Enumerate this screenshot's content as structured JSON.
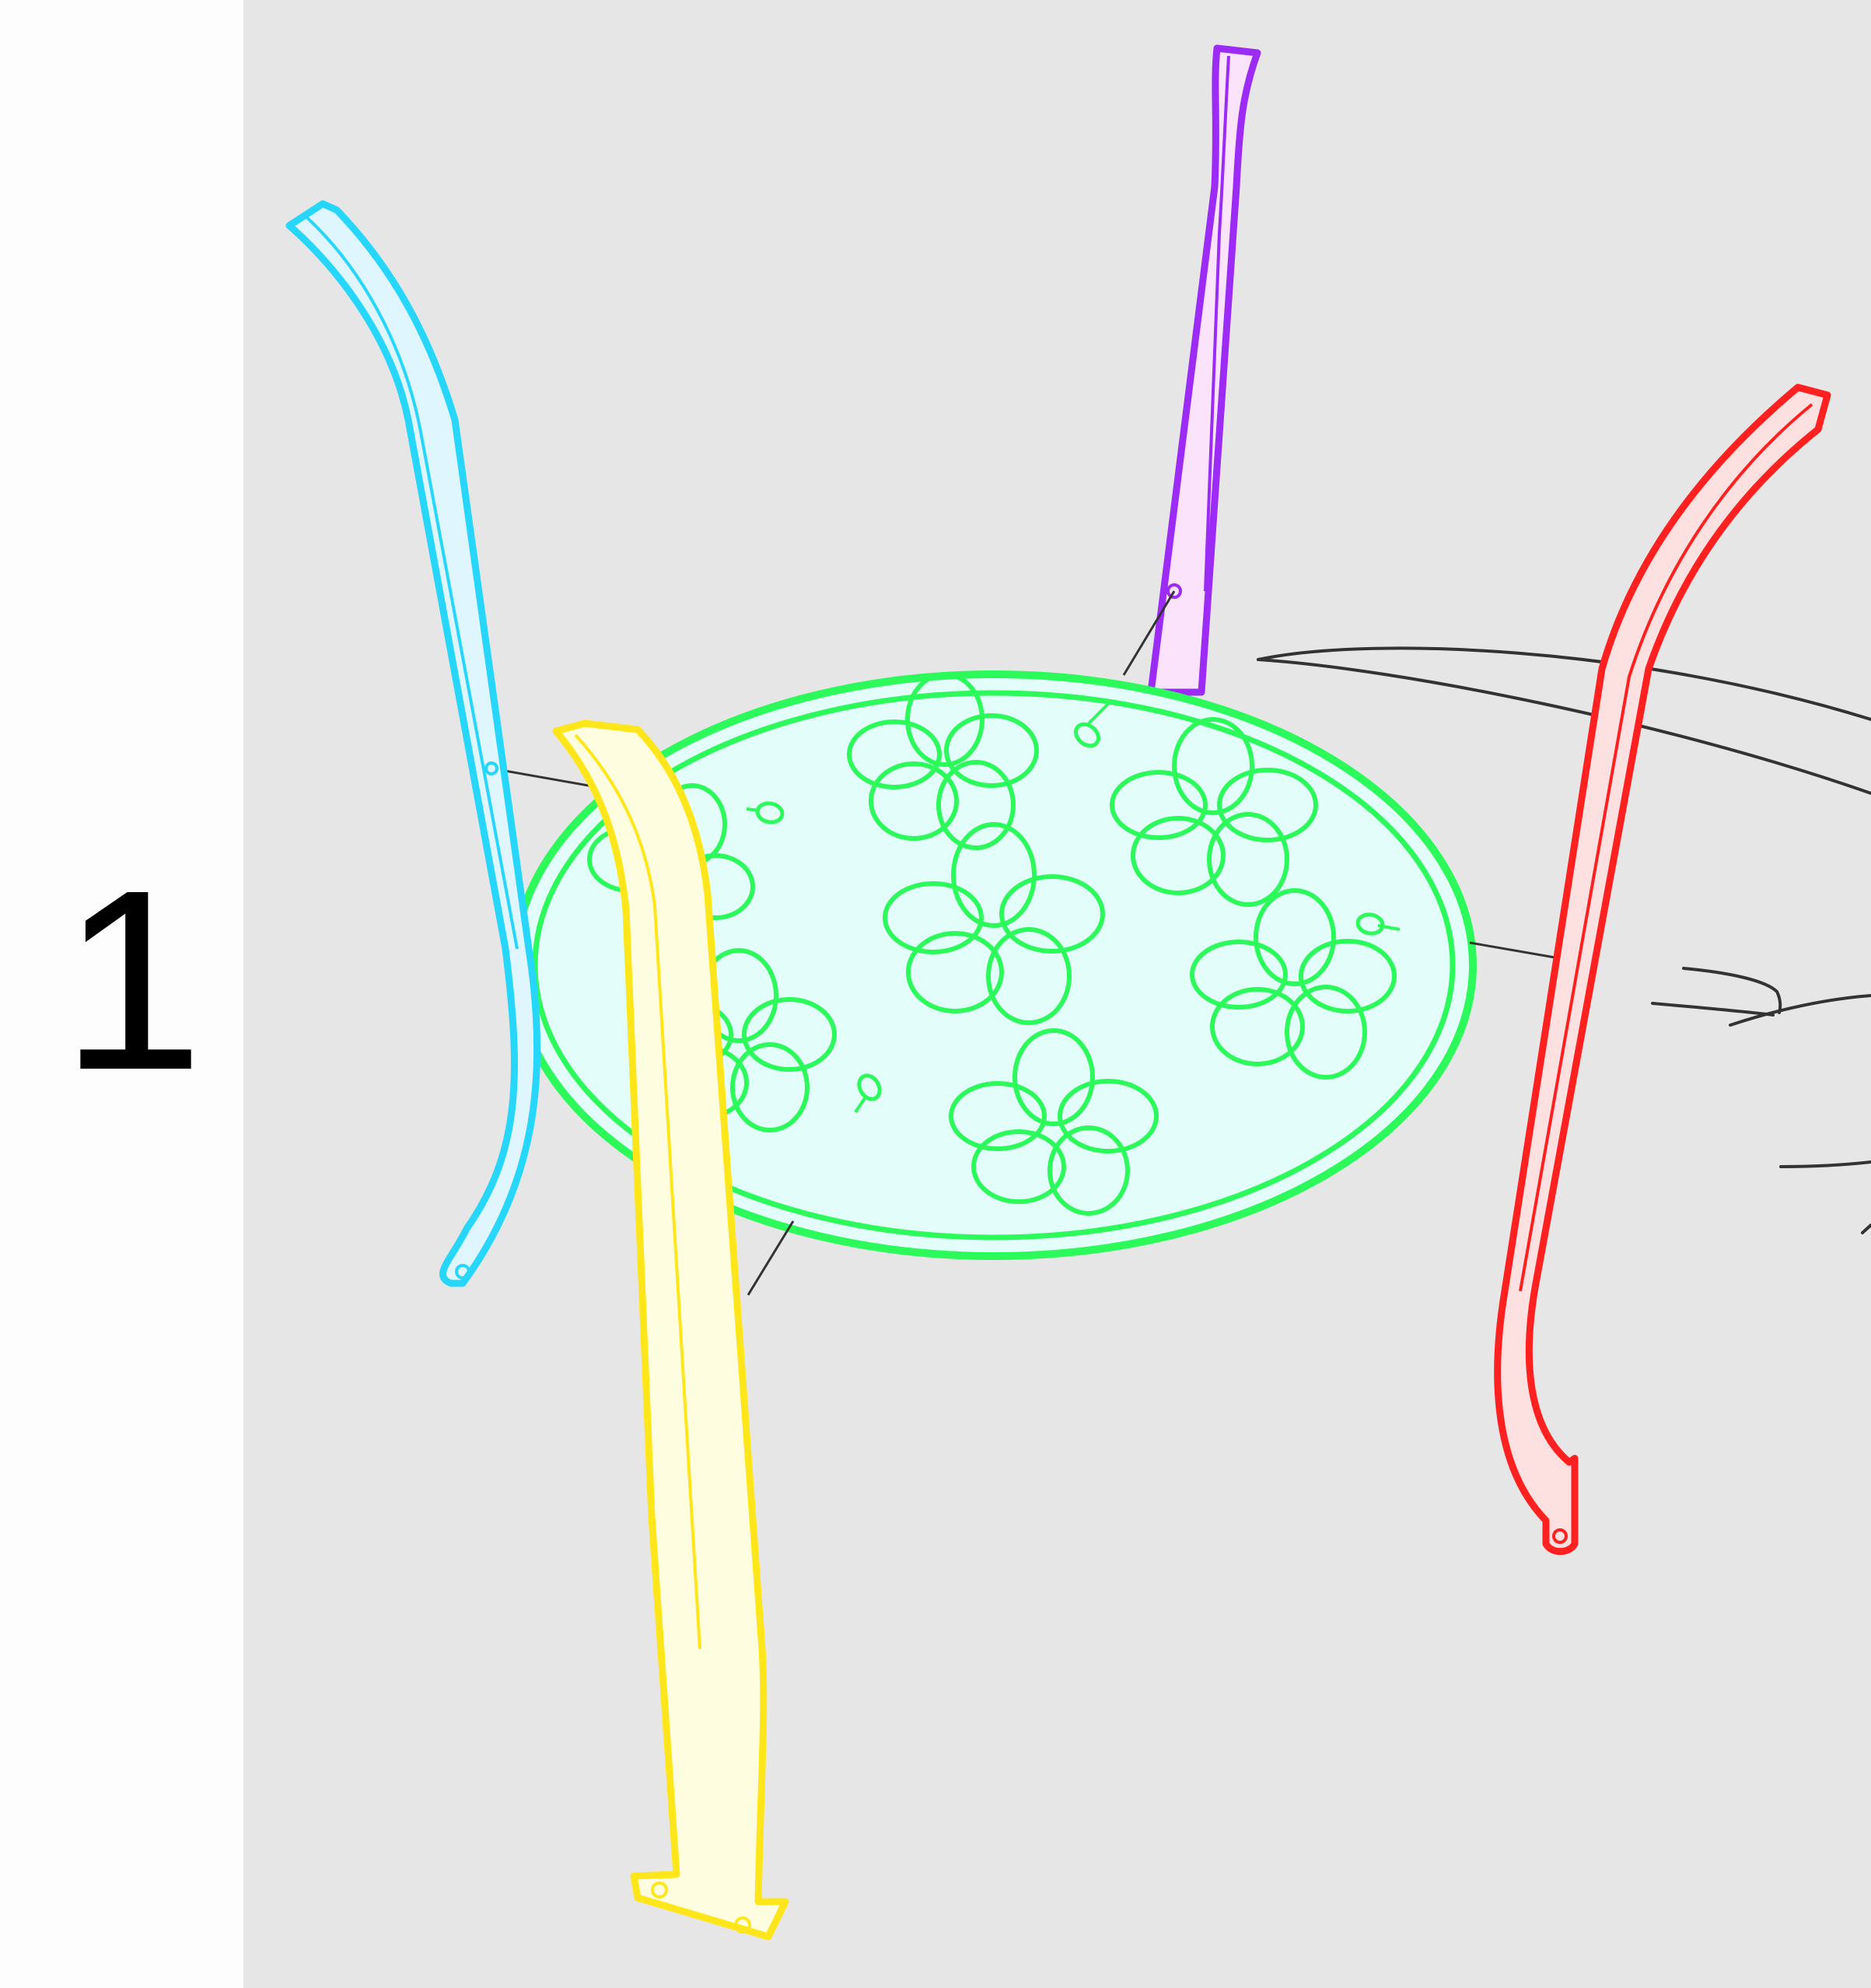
{
  "step": {
    "number": "1"
  },
  "colors": {
    "background": "#e6e6e6",
    "margin": "#fdfdfd",
    "tabletop": "#2bfa5a",
    "tabletop_fill": "#e3fdfb",
    "leg_cyan": "#27d6fb",
    "leg_cyan_fill": "#e0f6ff",
    "leg_purple": "#9b2bf5",
    "leg_purple_fill": "#fbe3fb",
    "leg_red": "#ff2020",
    "leg_red_fill": "#fde0e0",
    "leg_yellow": "#ffe61a",
    "leg_yellow_fill": "#fffde0",
    "hand_outline": "#333333",
    "leader_line": "#333333"
  },
  "parts": {
    "tabletop": "round-tabletop-with-flower-pattern",
    "legs": [
      "leg-cyan",
      "leg-purple",
      "leg-red",
      "leg-yellow"
    ],
    "screws": 4
  }
}
